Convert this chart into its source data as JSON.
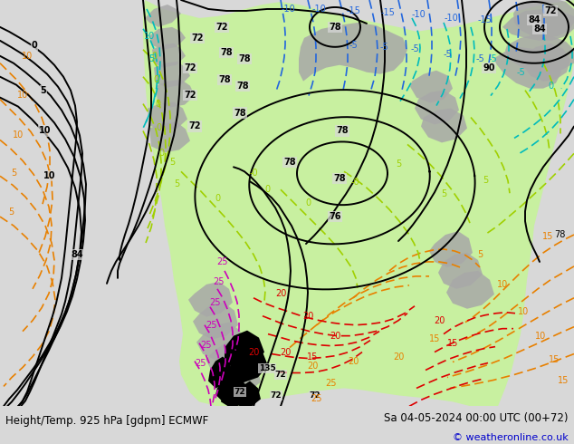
{
  "title_left": "Height/Temp. 925 hPa [gdpm] ECMWF",
  "title_right": "Sa 04-05-2024 00:00 UTC (00+72)",
  "copyright": "© weatheronline.co.uk",
  "bg_color": "#d8d8d8",
  "green_fill": "#c8f0a0",
  "gray_fill": "#a8a8a8",
  "black_fill": "#000000",
  "fig_width": 6.34,
  "fig_height": 4.9,
  "dpi": 100,
  "title_fontsize": 8.5,
  "copyright_fontsize": 8,
  "copyright_color": "#0000cc"
}
